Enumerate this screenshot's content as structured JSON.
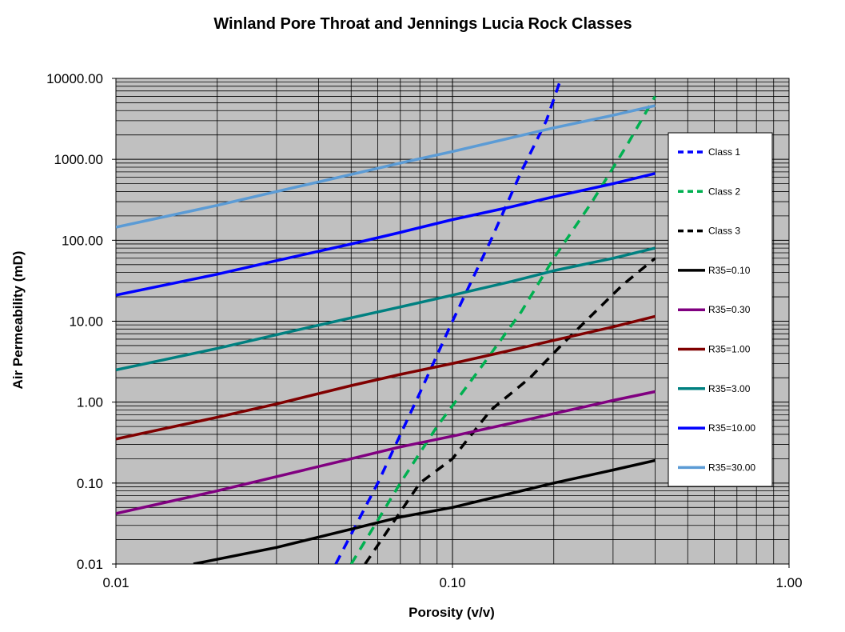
{
  "chart_data": {
    "type": "line",
    "title": "Winland Pore Throat and Jennings Lucia Rock Classes",
    "xlabel": "Porosity (v/v)",
    "ylabel": "Air Permeability (mD)",
    "x_scale": "log",
    "y_scale": "log",
    "xlim": [
      0.01,
      1.0
    ],
    "ylim": [
      0.01,
      10000
    ],
    "x_ticks": [
      "0.01",
      "0.10",
      "1.00"
    ],
    "y_ticks": [
      "0.01",
      "0.10",
      "1.00",
      "10.00",
      "100.00",
      "1000.00",
      "10000.00"
    ],
    "grid": true,
    "legend_position": "right",
    "plot_background": "#c0c0c0",
    "series": [
      {
        "name": "Class 1",
        "style": "dashed",
        "color": "#0000ff",
        "x": [
          0.045,
          0.06,
          0.08,
          0.1,
          0.13,
          0.16,
          0.19,
          0.21
        ],
        "y": [
          0.01,
          0.1,
          1.3,
          10,
          100,
          700,
          3000,
          10000
        ]
      },
      {
        "name": "Class 2",
        "style": "dashed",
        "color": "#00b050",
        "x": [
          0.05,
          0.07,
          0.09,
          0.12,
          0.16,
          0.2,
          0.26,
          0.33,
          0.4
        ],
        "y": [
          0.01,
          0.1,
          0.5,
          2.5,
          13,
          60,
          300,
          1500,
          6000
        ]
      },
      {
        "name": "Class 3",
        "style": "dashed",
        "color": "#000000",
        "x": [
          0.055,
          0.08,
          0.1,
          0.13,
          0.17,
          0.21,
          0.26,
          0.32,
          0.4
        ],
        "y": [
          0.01,
          0.1,
          0.2,
          0.8,
          2.0,
          5.0,
          12,
          28,
          60
        ]
      },
      {
        "name": "R35=0.10",
        "style": "solid",
        "color": "#000000",
        "x": [
          0.017,
          0.03,
          0.05,
          0.07,
          0.1,
          0.15,
          0.2,
          0.3,
          0.4
        ],
        "y": [
          0.01,
          0.016,
          0.027,
          0.038,
          0.05,
          0.075,
          0.1,
          0.145,
          0.19
        ]
      },
      {
        "name": "R35=0.30",
        "style": "solid",
        "color": "#800080",
        "x": [
          0.01,
          0.02,
          0.03,
          0.05,
          0.07,
          0.1,
          0.15,
          0.2,
          0.3,
          0.4
        ],
        "y": [
          0.042,
          0.08,
          0.12,
          0.2,
          0.28,
          0.38,
          0.55,
          0.72,
          1.05,
          1.35
        ]
      },
      {
        "name": "R35=1.00",
        "style": "solid",
        "color": "#800000",
        "x": [
          0.01,
          0.02,
          0.03,
          0.05,
          0.07,
          0.1,
          0.15,
          0.2,
          0.3,
          0.4
        ],
        "y": [
          0.35,
          0.65,
          0.95,
          1.6,
          2.2,
          3.0,
          4.4,
          5.8,
          8.5,
          11.5
        ]
      },
      {
        "name": "R35=3.00",
        "style": "solid",
        "color": "#008080",
        "x": [
          0.01,
          0.02,
          0.03,
          0.05,
          0.07,
          0.1,
          0.15,
          0.2,
          0.3,
          0.4
        ],
        "y": [
          2.5,
          4.6,
          6.8,
          11,
          15,
          21,
          31,
          42,
          60,
          80
        ]
      },
      {
        "name": "R35=10.00",
        "style": "solid",
        "color": "#0000ff",
        "x": [
          0.01,
          0.02,
          0.03,
          0.05,
          0.07,
          0.1,
          0.15,
          0.2,
          0.3,
          0.4
        ],
        "y": [
          21,
          38,
          56,
          90,
          125,
          180,
          260,
          345,
          500,
          670
        ]
      },
      {
        "name": "R35=30.00",
        "style": "solid",
        "color": "#5b9bd5",
        "x": [
          0.01,
          0.02,
          0.03,
          0.05,
          0.07,
          0.1,
          0.15,
          0.2,
          0.3,
          0.4
        ],
        "y": [
          145,
          270,
          400,
          650,
          900,
          1250,
          1850,
          2450,
          3500,
          4600
        ]
      }
    ]
  }
}
